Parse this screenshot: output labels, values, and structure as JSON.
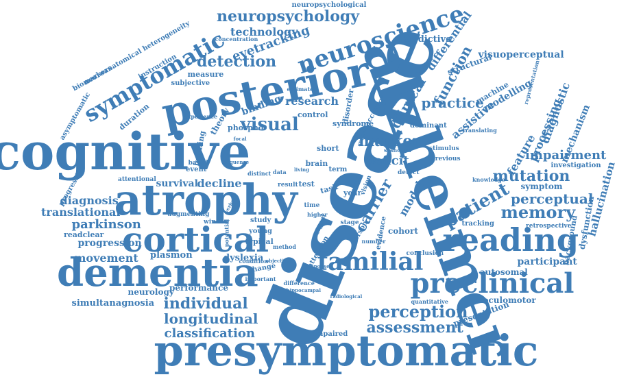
{
  "colors": {
    "word": "#3f7db6",
    "background": "#ffffff"
  },
  "words": [
    "disease",
    "alzheimer",
    "cognitive",
    "presymptomatic",
    "posterior",
    "atrophy",
    "dementia",
    "cortical",
    "neuroscience",
    "preclinical",
    "reading",
    "familial",
    "symptomatic",
    "neuropsychology",
    "visual",
    "eyetracking",
    "detection",
    "individual",
    "longitudinal",
    "classification",
    "perception",
    "assessment",
    "memory",
    "patient",
    "marker",
    "carrier",
    "model",
    "practice",
    "clinical",
    "function",
    "differential",
    "mutation",
    "perceptual",
    "impairment",
    "feature",
    "processing",
    "diagnostic",
    "mechanism",
    "deficit",
    "research",
    "binding",
    "theory",
    "predictive",
    "visuoperceptual",
    "modelling",
    "machine",
    "structural",
    "assistive",
    "technology",
    "diagnosis",
    "translational",
    "parkinson",
    "progression",
    "movement",
    "plasmon",
    "simultanagnosia",
    "neurology",
    "performance",
    "dyslexia",
    "survival",
    "decline",
    "participant",
    "autosomal",
    "oculomotor",
    "presentation",
    "hallucination",
    "dysfunction",
    "background",
    "retrospective",
    "tracking",
    "investigation",
    "symptom",
    "neuropsychological",
    "neuroanatomical heterogeneity",
    "instruction",
    "biomarkers",
    "asymptomatic",
    "duration",
    "subjective",
    "measure",
    "concentration",
    "progressive",
    "attentional",
    "readclear",
    "augmenting",
    "phospho",
    "control",
    "event",
    "based",
    "study",
    "young",
    "typical",
    "potential",
    "change",
    "important",
    "difference",
    "window",
    "time",
    "test",
    "result",
    "year",
    "task",
    "term",
    "vision",
    "short",
    "error",
    "brain",
    "data",
    "previous",
    "stimulus",
    "dominant",
    "standard",
    "syndrome",
    "accuracy",
    "disorder",
    "person",
    "cohort",
    "evidence",
    "conclusion",
    "impaired",
    "representation",
    "translating",
    "estimate",
    "learning",
    "experience",
    "number",
    "detect",
    "spatial",
    "quantitative",
    "attention",
    "method",
    "objective",
    "condition",
    "radiological",
    "hippocampal",
    "distinct",
    "stage",
    "higher",
    "focal",
    "living",
    "sequence",
    "signal",
    "response",
    "knowledge",
    "verbal"
  ]
}
